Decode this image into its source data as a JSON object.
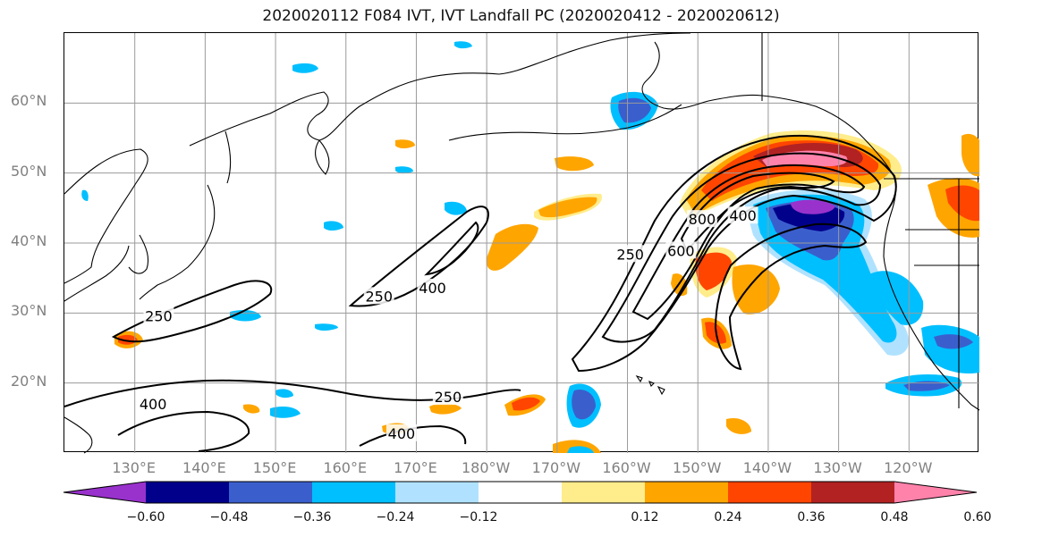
{
  "title": "2020020112 F084 IVT, IVT Landfall PC (2020020412 - 2020020612)",
  "map": {
    "projection": "cylindrical",
    "lon_range": [
      120,
      250
    ],
    "lat_range": [
      10,
      70
    ],
    "gridlines": true,
    "lat_labels": [
      "60°N",
      "50°N",
      "40°N",
      "30°N",
      "20°N"
    ],
    "lat_values": [
      60,
      50,
      40,
      30,
      20
    ],
    "lon_labels": [
      "130°E",
      "140°E",
      "150°E",
      "160°E",
      "170°E",
      "180°W",
      "170°W",
      "160°W",
      "150°W",
      "140°W",
      "130°W",
      "120°W"
    ],
    "lon_values": [
      130,
      140,
      150,
      160,
      170,
      180,
      190,
      200,
      210,
      220,
      230,
      240
    ],
    "contour_labels": [
      {
        "text": "250",
        "lon": 133.4,
        "lat": 29.5
      },
      {
        "text": "250",
        "lon": 164.7,
        "lat": 32.3
      },
      {
        "text": "400",
        "lon": 172.3,
        "lat": 33.5
      },
      {
        "text": "250",
        "lon": 174.5,
        "lat": 17.9
      },
      {
        "text": "400",
        "lon": 132.6,
        "lat": 16.9
      },
      {
        "text": "400",
        "lon": 167.9,
        "lat": 12.7
      },
      {
        "text": "250",
        "lon": 200.4,
        "lat": 38.3
      },
      {
        "text": "600",
        "lon": 207.6,
        "lat": 38.8
      },
      {
        "text": "800",
        "lon": 210.6,
        "lat": 43.3
      },
      {
        "text": "400",
        "lon": 216.4,
        "lat": 43.8
      }
    ]
  },
  "colorbar": {
    "colors": [
      "#9932CC",
      "#00008B",
      "#3A5FCD",
      "#00BFFF",
      "#B0E2FF",
      "#FFFFFF",
      "#FFEC8B",
      "#FFA500",
      "#FF4500",
      "#B22222",
      "#FF82AB"
    ],
    "ticks": [
      "−0.60",
      "−0.48",
      "−0.36",
      "−0.24",
      "−0.12",
      "0.12",
      "0.24",
      "0.36",
      "0.48",
      "0.60"
    ],
    "tick_values": [
      -0.6,
      -0.48,
      -0.36,
      -0.24,
      -0.12,
      0.12,
      0.24,
      0.36,
      0.48,
      0.6
    ],
    "extend": "both"
  }
}
